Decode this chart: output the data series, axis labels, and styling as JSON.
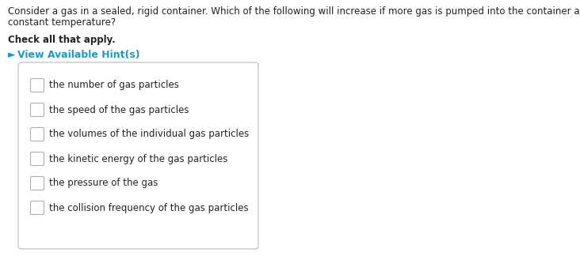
{
  "bg_color": "#ffffff",
  "question_line1": "Consider a gas in a sealed, rigid container. Which of the following will increase if more gas is pumped into the container at",
  "question_line2": "constant temperature?",
  "bold_text": "Check all that apply.",
  "hint_arrow": "►",
  "hint_text": "View Available Hint(s)",
  "hint_color": "#1a9bbf",
  "options": [
    "the number of gas particles",
    "the speed of the gas particles",
    "the volumes of the individual gas particles",
    "the kinetic energy of the gas particles",
    "the pressure of the gas",
    "the collision frequency of the gas particles"
  ],
  "text_color": "#222222",
  "box_edge_color": "#c8c8c8",
  "box_fill_color": "#ffffff",
  "checkbox_edge_color": "#b0b0b0",
  "checkbox_fill_color": "#ffffff",
  "question_fontsize": 8.5,
  "bold_fontsize": 8.5,
  "hint_fontsize": 9.0,
  "option_fontsize": 8.5
}
